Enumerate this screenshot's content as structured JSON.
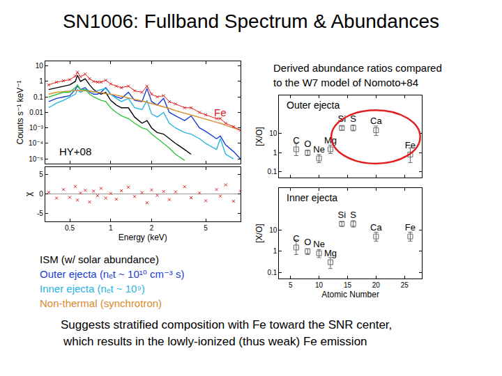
{
  "slide": {
    "title": "SN1006: Fullband Spectrum & Abundances",
    "heading": [
      "Derived abundance ratios compared",
      "to the W7 model of Nomoto+84"
    ],
    "conclusion": [
      "Suggests stratified composition with Fe toward the SNR center,",
      "which results in the lowly-ionized (thus weak) Fe emission"
    ]
  },
  "chart_data": [
    {
      "type": "line",
      "log": true,
      "y_label": "Counts s⁻¹ keV⁻¹",
      "tick_labels": "y",
      "x": [
        0.35,
        0.4,
        0.45,
        0.5,
        0.55,
        0.57,
        0.6,
        0.65,
        0.7,
        0.75,
        0.8,
        0.85,
        0.92,
        1.0,
        1.1,
        1.2,
        1.35,
        1.5,
        1.7,
        1.85,
        2.0,
        2.2,
        2.45,
        2.7,
        3.0,
        3.5,
        3.9,
        4.5,
        5.0,
        6.0,
        6.4,
        7.0,
        8.0,
        9.0
      ],
      "xlim": [
        0.33,
        9
      ],
      "xticks": [
        0.5,
        1,
        2,
        5
      ],
      "ylim": [
        5e-06,
        20
      ],
      "yticks": [
        {
          "value": 1e-05,
          "label": "10⁻⁵"
        },
        {
          "value": 0.0001,
          "label": "10⁻⁴"
        },
        {
          "value": 0.001,
          "label": "10⁻³"
        },
        0.01,
        0.1,
        1,
        10
      ],
      "series": [
        {
          "name": "ISM (w/ solar abundance)",
          "color": "#000000",
          "values": [
            0.3,
            0.4,
            0.5,
            0.6,
            1.0,
            2.5,
            1.0,
            1.5,
            0.6,
            0.3,
            0.2,
            0.15,
            0.2,
            0.06,
            0.03,
            0.02,
            0.02,
            0.005,
            0.002,
            0.003,
            0.001,
            0.0005,
            0.0004,
            0.0002,
            0.0001,
            4e-05,
            2e-05,
            null,
            null,
            null,
            null,
            null,
            null,
            null
          ]
        },
        {
          "name": "Outer ejecta (nₑt ~ 10¹⁰ cm⁻³ s)",
          "color": "#1a3cd0",
          "values": [
            0.05,
            0.08,
            0.1,
            0.12,
            0.3,
            0.5,
            0.3,
            0.4,
            0.2,
            0.15,
            0.15,
            0.2,
            0.4,
            0.15,
            0.1,
            0.08,
            0.2,
            0.06,
            0.05,
            0.35,
            0.05,
            0.03,
            0.08,
            0.01,
            0.006,
            0.003,
            0.006,
            0.001,
            0.0006,
            0.0002,
            0.0003,
            8e-05,
            3e-05,
            1e-05
          ]
        },
        {
          "name": "Inner ejecta (nₑt ~ 10⁹)",
          "color": "#26b4e0",
          "values": [
            0.02,
            0.04,
            0.06,
            0.1,
            0.15,
            0.3,
            0.2,
            0.3,
            0.25,
            0.2,
            0.25,
            0.3,
            0.35,
            0.15,
            0.08,
            0.05,
            0.08,
            0.02,
            0.015,
            0.06,
            0.008,
            0.005,
            0.01,
            0.002,
            0.001,
            0.0005,
            0.0004,
            0.0002,
            0.0001,
            4e-05,
            0.0002,
            2e-05,
            1e-05,
            null
          ]
        },
        {
          "name": "Non-thermal (synchrotron)",
          "color": "#d98a2b",
          "values": [
            0.15,
            0.2,
            0.22,
            0.25,
            0.26,
            0.26,
            0.26,
            0.25,
            0.24,
            0.22,
            0.2,
            0.19,
            0.17,
            0.15,
            0.13,
            0.11,
            0.09,
            0.07,
            0.055,
            0.045,
            0.038,
            0.03,
            0.023,
            0.018,
            0.013,
            0.009,
            0.007,
            0.0048,
            0.0037,
            0.0023,
            0.002,
            0.0015,
            0.001,
            0.0007
          ]
        },
        {
          "color": "#2fc43a",
          "values": [
            0.1,
            0.15,
            0.2,
            0.2,
            0.4,
            0.6,
            0.3,
            0.3,
            0.15,
            0.1,
            0.08,
            0.06,
            0.05,
            0.02,
            0.01,
            0.006,
            0.004,
            0.002,
            0.001,
            0.0008,
            0.0004,
            0.0002,
            0.0001,
            5e-05,
            2e-05,
            8e-06,
            null,
            null,
            null,
            null,
            null,
            null,
            null,
            null
          ]
        },
        {
          "color": "#e02020",
          "marker": "cross",
          "values": [
            0.6,
            0.9,
            1.1,
            1.3,
            2.2,
            4,
            2,
            3,
            1.5,
            1.0,
            0.9,
            0.9,
            1.2,
            0.7,
            0.5,
            0.4,
            0.5,
            0.25,
            0.2,
            0.5,
            0.15,
            0.1,
            0.12,
            0.05,
            0.035,
            0.02,
            0.02,
            0.01,
            0.007,
            0.004,
            0.004,
            0.002,
            0.0012,
            0.0007
          ]
        }
      ],
      "annotations": [
        {
          "text": "Fe",
          "x": 6.4,
          "y": 0.01,
          "color": "#e02020"
        },
        {
          "text": "HY+08",
          "x": 0.55,
          "y": 3e-05,
          "color": "#000000"
        }
      ]
    },
    {
      "type": "scatter",
      "log": "x",
      "x_label": "Energy (keV)",
      "y_label": "χ",
      "x": [
        0.35,
        0.4,
        0.45,
        0.5,
        0.55,
        0.57,
        0.6,
        0.65,
        0.7,
        0.75,
        0.8,
        0.85,
        0.92,
        1.0,
        1.1,
        1.2,
        1.35,
        1.5,
        1.7,
        1.85,
        2.0,
        2.2,
        2.45,
        2.7,
        3.0,
        3.5,
        3.9,
        4.5,
        5.0,
        6.0,
        6.4,
        7.0,
        8.0,
        9.0
      ],
      "values": [
        0.5,
        -1,
        1.2,
        -0.8,
        2,
        -1.5,
        0.3,
        1,
        -2,
        0.8,
        -0.4,
        1.5,
        -1,
        0.2,
        -1.3,
        0.9,
        1.8,
        -0.6,
        0.4,
        -2.2,
        1.1,
        -0.3,
        0.7,
        -1.4,
        0.6,
        1.9,
        -0.9,
        0.3,
        -1.7,
        1.2,
        -0.5,
        2.4,
        -1.8,
        0.8
      ],
      "color": "#e02020",
      "marker": "cross",
      "xlim": [
        0.33,
        9
      ],
      "xticks": [
        0.5,
        1,
        2,
        5
      ],
      "ylim": [
        -7,
        7
      ],
      "yticks": [
        -5,
        0,
        5
      ]
    },
    {
      "type": "scatter",
      "log": "y",
      "title": "Outer ejecta",
      "y_label": "[X/O]",
      "tick_labels": "y",
      "x": [
        6,
        8,
        10,
        12,
        14,
        16,
        20,
        26
      ],
      "labels": [
        "C",
        "O",
        "Ne",
        "Mg",
        "Si",
        "S",
        "Ca",
        "Fe"
      ],
      "values": [
        1.5,
        1,
        0.5,
        1.5,
        20,
        20,
        15,
        0.8
      ],
      "error_plus": [
        1.5,
        0.3,
        0.3,
        1,
        5,
        8,
        10,
        1
      ],
      "error_minus": [
        0.8,
        0.3,
        0.2,
        0.6,
        5,
        6,
        7,
        0.5
      ],
      "color": "#666666",
      "marker": "square",
      "xlim": [
        3,
        28
      ],
      "xticks": [
        5,
        10,
        15,
        20,
        25
      ],
      "ylim": [
        0.05,
        1000
      ],
      "yticks": [
        0.1,
        1,
        10
      ]
    },
    {
      "type": "scatter",
      "log": "y",
      "title": "Inner ejecta",
      "x_label": "Atomic Number",
      "y_label": "[X/O]",
      "x": [
        6,
        8,
        10,
        12,
        14,
        16,
        20,
        26
      ],
      "labels": [
        "C",
        "O",
        "Ne",
        "Mg",
        "Si",
        "S",
        "Ca",
        "Fe"
      ],
      "values": [
        1.5,
        1,
        0.8,
        0.3,
        20,
        20,
        5,
        5
      ],
      "error_plus": [
        2,
        0.3,
        0.4,
        0.2,
        5,
        8,
        3,
        3
      ],
      "error_minus": [
        0.8,
        0.3,
        0.3,
        0.15,
        5,
        6,
        2,
        2
      ],
      "color": "#666666",
      "marker": "square",
      "xlim": [
        3,
        28
      ],
      "xticks": [
        5,
        10,
        15,
        20,
        25
      ],
      "ylim": [
        0.05,
        1000
      ],
      "yticks": [
        0.1,
        1,
        10
      ]
    }
  ]
}
